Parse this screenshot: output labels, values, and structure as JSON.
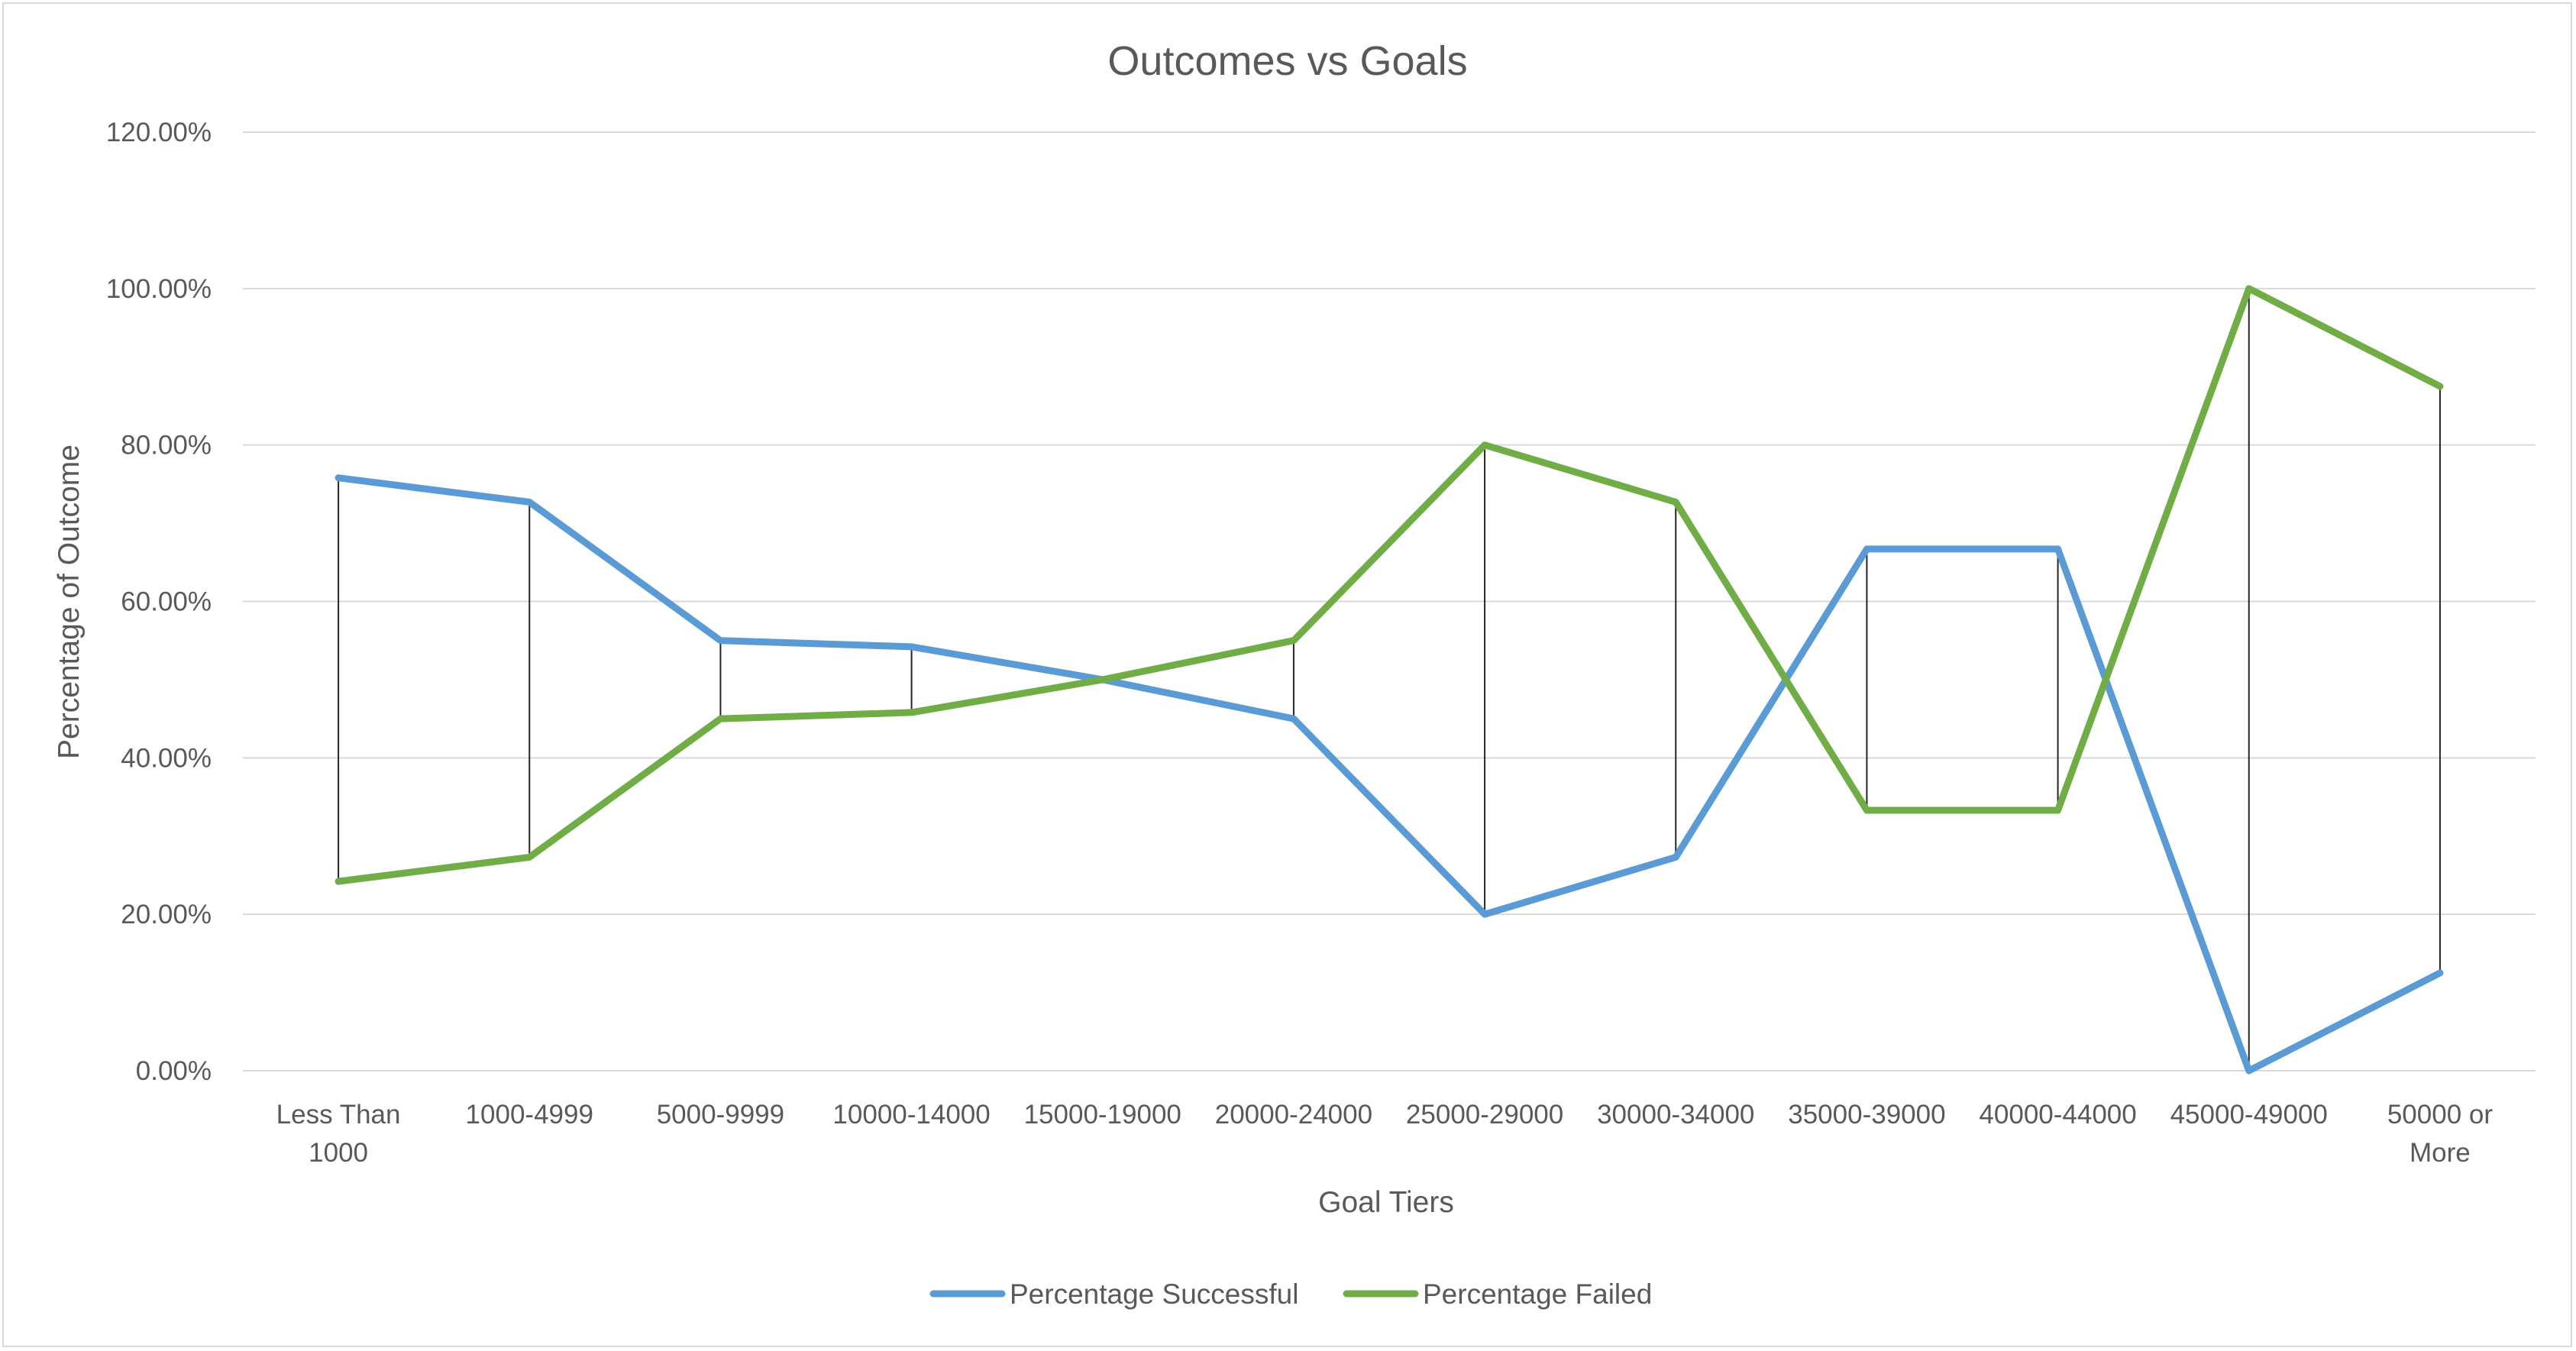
{
  "chart_data": {
    "type": "line",
    "title": "Outcomes vs Goals",
    "xlabel": "Goal Tiers",
    "ylabel": "Percentage of Outcome",
    "categories": [
      [
        "Less Than",
        "1000"
      ],
      [
        "1000-4999"
      ],
      [
        "5000-9999"
      ],
      [
        "10000-14000"
      ],
      [
        "15000-19000"
      ],
      [
        "20000-24000"
      ],
      [
        "25000-29000"
      ],
      [
        "30000-34000"
      ],
      [
        "35000-39000"
      ],
      [
        "40000-44000"
      ],
      [
        "45000-49000"
      ],
      [
        "50000 or",
        "More"
      ]
    ],
    "yticks": [
      "0.00%",
      "20.00%",
      "40.00%",
      "60.00%",
      "80.00%",
      "100.00%",
      "120.00%"
    ],
    "ylim": [
      0,
      120
    ],
    "grid": true,
    "high_low_lines": true,
    "legend_position": "bottom",
    "series": [
      {
        "name": "Percentage Successful",
        "color": "#5b9bd5",
        "values": [
          75.8,
          72.7,
          55.0,
          54.2,
          50.0,
          45.0,
          20.0,
          27.3,
          66.7,
          66.7,
          0.0,
          12.5
        ]
      },
      {
        "name": "Percentage Failed",
        "color": "#70ad47",
        "values": [
          24.2,
          27.3,
          45.0,
          45.8,
          50.0,
          55.0,
          80.0,
          72.7,
          33.3,
          33.3,
          100.0,
          87.5
        ]
      }
    ]
  }
}
